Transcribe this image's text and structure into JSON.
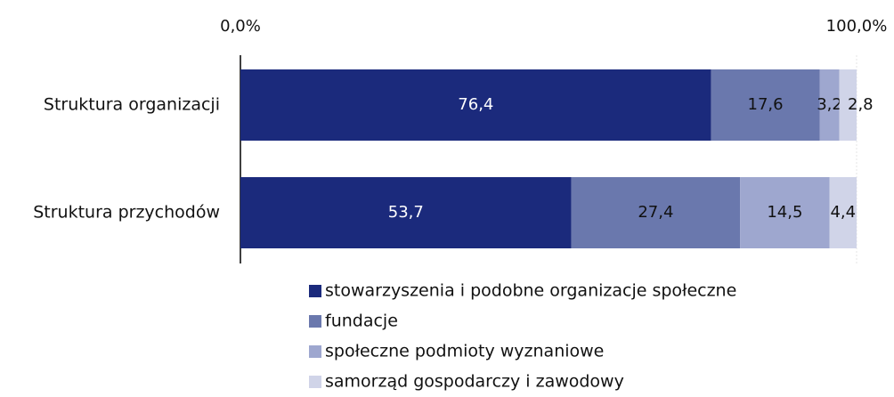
{
  "chart_data": {
    "type": "stacked_bar_horizontal",
    "categories": [
      "Struktura organizacji",
      "Struktura przychodów"
    ],
    "series": [
      {
        "name": "stowarzyszenia i podobne organizacje społeczne",
        "color": "#1b2a7c",
        "values": [
          76.4,
          53.7
        ],
        "value_labels": [
          "76,4",
          "53,7"
        ]
      },
      {
        "name": "fundacje",
        "color": "#6a78ad",
        "values": [
          17.6,
          27.4
        ],
        "value_labels": [
          "17,6",
          "27,4"
        ]
      },
      {
        "name": "społeczne podmioty wyznaniowe",
        "color": "#9ea7cf",
        "values": [
          3.2,
          14.5
        ],
        "value_labels": [
          "3,2",
          "14,5"
        ]
      },
      {
        "name": "samorząd gospodarczy i zawodowy",
        "color": "#d0d4e8",
        "values": [
          2.8,
          4.4
        ],
        "value_labels": [
          "2,8",
          "4,4"
        ]
      }
    ],
    "xlim": [
      0,
      100
    ],
    "xticks": [
      {
        "value": 0,
        "label": "0,0%"
      },
      {
        "value": 100,
        "label": "100,0%"
      }
    ]
  }
}
